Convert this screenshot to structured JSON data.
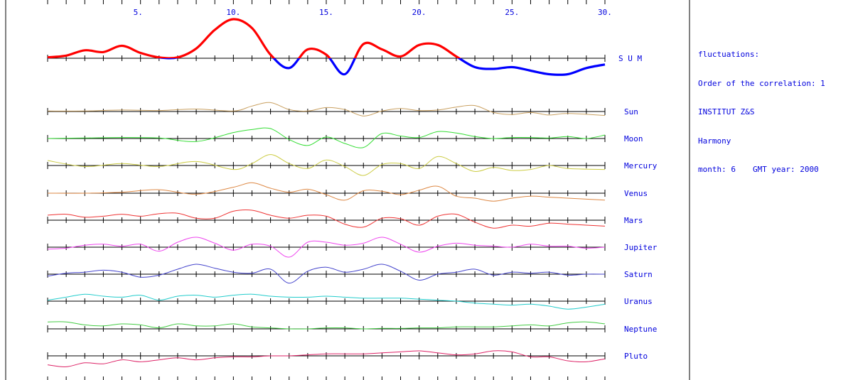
{
  "info": {
    "line1": "fluctuations:",
    "line2": "Order of the correlation: 1",
    "line3": "INSTITUT Z&S",
    "line4": "Harmony",
    "month_text": "month: 6",
    "year_text": "GMT year: 2000"
  },
  "chart_data": {
    "type": "line",
    "xlim": [
      0,
      30
    ],
    "x_tick_labels": [
      "5.",
      "10.",
      "15.",
      "20.",
      "25.",
      "30."
    ],
    "x_tick_values": [
      5,
      10,
      15,
      20,
      25,
      30
    ],
    "colors": {
      "positive": "#ff0000",
      "negative": "#0000ff",
      "label": "#0000dd"
    },
    "sum": {
      "name": "S U M",
      "x": [
        0,
        1,
        2,
        3,
        4,
        5,
        6,
        7,
        8,
        9,
        10,
        11,
        12,
        13,
        14,
        15,
        16,
        17,
        18,
        19,
        20,
        21,
        22,
        23,
        24,
        25,
        26,
        27,
        28,
        29,
        30
      ],
      "y": [
        0.05,
        0.15,
        0.45,
        0.35,
        0.7,
        0.3,
        0.05,
        0.05,
        0.55,
        1.6,
        2.2,
        1.7,
        0.2,
        -0.55,
        0.5,
        0.2,
        -0.9,
        0.8,
        0.5,
        0.1,
        0.75,
        0.75,
        0.1,
        -0.5,
        -0.6,
        -0.5,
        -0.7,
        -0.9,
        -0.9,
        -0.55,
        -0.35
      ]
    },
    "series": [
      {
        "name": "Sun",
        "color": "#c9a060",
        "x": [
          0,
          2,
          4,
          6,
          8,
          10,
          11,
          12,
          13,
          14,
          15,
          16,
          17,
          18,
          19,
          20,
          21,
          22,
          23,
          24,
          25,
          26,
          27,
          28,
          30
        ],
        "y": [
          0.05,
          0.05,
          0.15,
          0.1,
          0.25,
          0.05,
          0.55,
          0.9,
          0.2,
          0.05,
          0.4,
          0.2,
          -0.45,
          0.05,
          0.3,
          0.1,
          0.15,
          0.45,
          0.6,
          -0.1,
          -0.3,
          -0.1,
          -0.35,
          -0.2,
          -0.4
        ]
      },
      {
        "name": "Moon",
        "color": "#33dd33",
        "x": [
          0,
          2,
          4,
          6,
          8,
          10,
          11,
          12,
          13,
          14,
          15,
          16,
          17,
          18,
          19,
          20,
          21,
          22,
          23,
          24,
          25,
          26,
          27,
          28,
          29,
          30
        ],
        "y": [
          0,
          0.05,
          0.1,
          0.05,
          -0.3,
          0.6,
          0.9,
          1.0,
          -0.1,
          -0.7,
          0.15,
          -0.5,
          -0.9,
          0.5,
          0.25,
          0.1,
          0.7,
          0.55,
          0.2,
          0.0,
          0.1,
          0.1,
          0.05,
          0.2,
          0.0,
          0.35
        ]
      },
      {
        "name": "Mercury",
        "color": "#cccc44",
        "x": [
          0,
          2,
          4,
          6,
          8,
          10,
          11,
          12,
          13,
          14,
          15,
          16,
          17,
          18,
          19,
          20,
          21,
          22,
          23,
          24,
          25,
          26,
          27,
          28,
          30
        ],
        "y": [
          0.5,
          -0.1,
          0.2,
          -0.1,
          0.4,
          -0.4,
          0.2,
          1.1,
          0.2,
          -0.3,
          0.55,
          -0.1,
          -1.0,
          0.1,
          0.2,
          -0.3,
          0.9,
          0.2,
          -0.6,
          -0.2,
          -0.5,
          -0.4,
          0.0,
          -0.3,
          -0.4
        ]
      },
      {
        "name": "Venus",
        "color": "#dd8844",
        "x": [
          0,
          2,
          4,
          6,
          8,
          10,
          11,
          12,
          13,
          14,
          15,
          16,
          17,
          18,
          19,
          20,
          21,
          22,
          23,
          24,
          25,
          26,
          27,
          28,
          30
        ],
        "y": [
          0,
          0,
          0.1,
          0.35,
          -0.1,
          0.6,
          1.05,
          0.5,
          0.1,
          0.4,
          -0.15,
          -0.7,
          0.25,
          0.2,
          -0.15,
          0.3,
          0.7,
          -0.3,
          -0.5,
          -0.8,
          -0.5,
          -0.3,
          -0.4,
          -0.5,
          -0.7
        ]
      },
      {
        "name": "Mars",
        "color": "#ee3333",
        "x": [
          0,
          1,
          2,
          3,
          4,
          5,
          6,
          7,
          8,
          9,
          10,
          11,
          12,
          13,
          14,
          15,
          16,
          17,
          18,
          19,
          20,
          21,
          22,
          23,
          24,
          25,
          26,
          27,
          28,
          29,
          30
        ],
        "y": [
          0.5,
          0.6,
          0.3,
          0.4,
          0.6,
          0.4,
          0.65,
          0.7,
          0.2,
          0.2,
          0.9,
          1.0,
          0.5,
          0.2,
          0.5,
          0.4,
          -0.4,
          -0.7,
          0.2,
          0.15,
          -0.5,
          0.4,
          0.6,
          -0.2,
          -0.8,
          -0.5,
          -0.6,
          -0.3,
          -0.4,
          -0.5,
          -0.6
        ]
      },
      {
        "name": "Jupiter",
        "color": "#ee44ee",
        "x": [
          0,
          1,
          2,
          3,
          4,
          5,
          6,
          7,
          8,
          9,
          10,
          11,
          12,
          13,
          14,
          15,
          16,
          17,
          18,
          19,
          20,
          21,
          22,
          23,
          24,
          25,
          26,
          27,
          28,
          29,
          30
        ],
        "y": [
          -0.2,
          -0.1,
          0.2,
          0.3,
          0.1,
          0.3,
          -0.4,
          0.5,
          1.0,
          0.4,
          -0.3,
          0.3,
          0.1,
          -1.0,
          0.5,
          0.5,
          0.2,
          0.4,
          1.0,
          0.3,
          -0.5,
          0.1,
          0.4,
          0.2,
          0.1,
          0.0,
          0.3,
          0.1,
          0.1,
          -0.1,
          0.0
        ]
      },
      {
        "name": "Saturn",
        "color": "#4444cc",
        "x": [
          0,
          1,
          2,
          3,
          4,
          5,
          6,
          7,
          8,
          9,
          10,
          11,
          12,
          13,
          14,
          15,
          16,
          17,
          18,
          19,
          20,
          21,
          22,
          23,
          24,
          25,
          26,
          27,
          28,
          29,
          30
        ],
        "y": [
          -0.2,
          0.1,
          0.2,
          0.4,
          0.2,
          -0.3,
          -0.1,
          0.5,
          1.0,
          0.6,
          0.2,
          0.1,
          0.5,
          -0.9,
          0.3,
          0.7,
          0.2,
          0.5,
          1.0,
          0.3,
          -0.6,
          0.0,
          0.2,
          0.5,
          -0.1,
          0.2,
          0.1,
          0.2,
          -0.1,
          0.0,
          0.0
        ]
      },
      {
        "name": "Uranus",
        "color": "#22cccc",
        "x": [
          0,
          1,
          2,
          3,
          4,
          5,
          6,
          7,
          8,
          9,
          10,
          11,
          12,
          13,
          14,
          15,
          16,
          17,
          18,
          19,
          20,
          21,
          22,
          23,
          24,
          25,
          26,
          27,
          28,
          29,
          30
        ],
        "y": [
          0.1,
          0.4,
          0.7,
          0.5,
          0.4,
          0.6,
          0.1,
          0.5,
          0.6,
          0.4,
          0.6,
          0.7,
          0.5,
          0.4,
          0.4,
          0.5,
          0.4,
          0.3,
          0.3,
          0.3,
          0.2,
          0.1,
          0.0,
          -0.2,
          -0.3,
          -0.4,
          -0.3,
          -0.5,
          -0.8,
          -0.6,
          -0.3
        ]
      },
      {
        "name": "Neptune",
        "color": "#44cc44",
        "x": [
          0,
          1,
          2,
          3,
          4,
          5,
          6,
          7,
          8,
          9,
          10,
          11,
          12,
          13,
          14,
          15,
          16,
          17,
          18,
          19,
          20,
          21,
          22,
          23,
          24,
          25,
          26,
          27,
          28,
          29,
          30
        ],
        "y": [
          0.7,
          0.7,
          0.4,
          0.3,
          0.5,
          0.4,
          0.1,
          0.5,
          0.3,
          0.3,
          0.5,
          0.2,
          0.1,
          0.0,
          0.0,
          0.1,
          0.1,
          0.0,
          0.05,
          0.05,
          0.1,
          0.1,
          0.2,
          0.2,
          0.2,
          0.3,
          0.4,
          0.3,
          0.6,
          0.7,
          0.5
        ]
      },
      {
        "name": "Pluto",
        "color": "#dd2266",
        "x": [
          0,
          1,
          2,
          3,
          4,
          5,
          6,
          7,
          8,
          9,
          10,
          11,
          12,
          13,
          14,
          15,
          16,
          17,
          18,
          19,
          20,
          21,
          22,
          23,
          24,
          25,
          26,
          27,
          28,
          29,
          30
        ],
        "y": [
          -0.9,
          -1.1,
          -0.7,
          -0.8,
          -0.4,
          -0.6,
          -0.4,
          -0.2,
          -0.4,
          -0.2,
          -0.1,
          -0.1,
          0.0,
          0.0,
          0.1,
          0.2,
          0.2,
          0.2,
          0.3,
          0.4,
          0.5,
          0.3,
          0.1,
          0.2,
          0.5,
          0.4,
          -0.1,
          -0.1,
          -0.5,
          -0.6,
          -0.3
        ]
      }
    ]
  }
}
